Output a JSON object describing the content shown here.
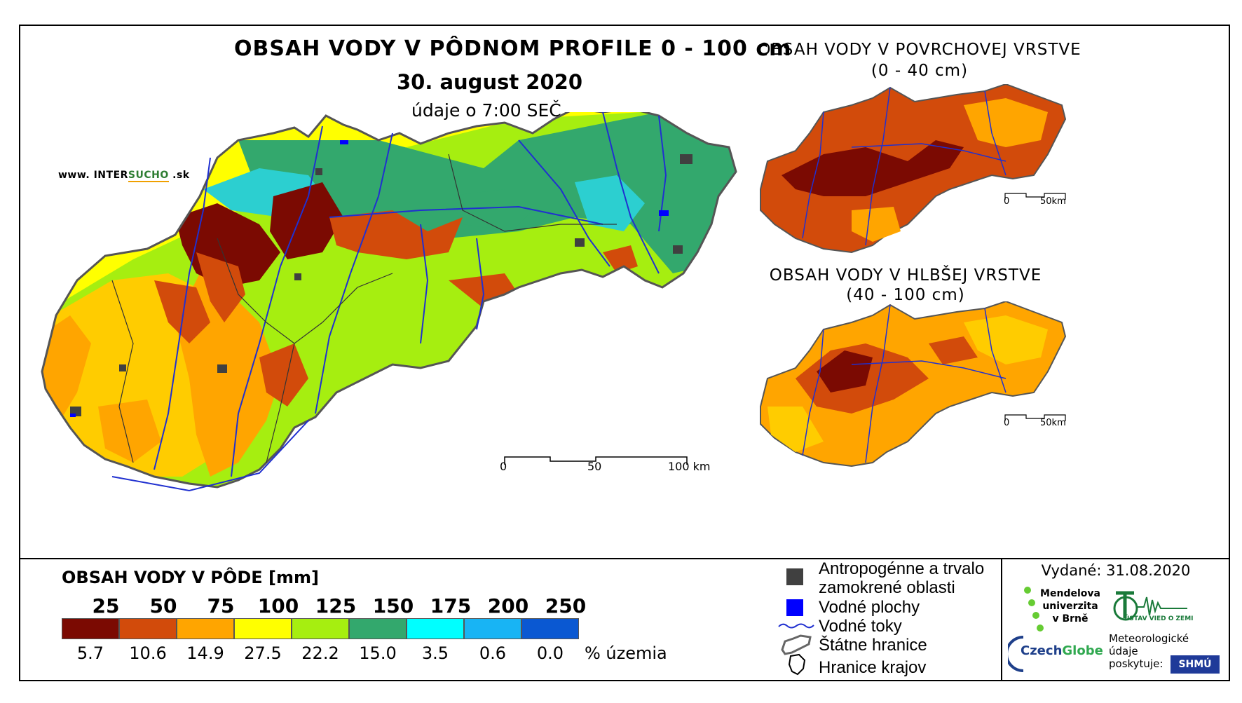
{
  "main": {
    "title": "OBSAH VODY V PÔDNOM PROFILE 0 - 100 cm",
    "date": "30. august 2020",
    "data_time": "údaje o 7:00 SEČ",
    "website_prefix": "www. INTER",
    "website_highlight": "SUCHO",
    "website_suffix": " .sk",
    "scale": {
      "zero": "0",
      "mid": "50",
      "max": "100 km"
    }
  },
  "surface_map": {
    "title": "OBSAH VODY V POVRCHOVEJ VRSTVE",
    "subtitle": "(0 - 40 cm)",
    "scale": {
      "zero": "0",
      "max": "50km"
    }
  },
  "deep_map": {
    "title": "OBSAH VODY V HLBŠEJ VRSTVE",
    "subtitle": "(40 - 100 cm)",
    "scale": {
      "zero": "0",
      "max": "50km"
    }
  },
  "legend": {
    "title": "OBSAH VODY V PÔDE [mm]",
    "thresholds": [
      "25",
      "50",
      "75",
      "100",
      "125",
      "150",
      "175",
      "200",
      "250"
    ],
    "colors": [
      "#7b0a02",
      "#d24b0b",
      "#ffa500",
      "#ffff00",
      "#a6ee10",
      "#33a86d",
      "#00ffff",
      "#18b4f4",
      "#0a58d2"
    ],
    "percentages": [
      "5.7",
      "10.6",
      "14.9",
      "27.5",
      "22.2",
      "15.0",
      "3.5",
      "0.6",
      "0.0"
    ],
    "percent_unit": "% územia"
  },
  "key": {
    "anthropogenic_line1": "Antropogénne a trvalo",
    "anthropogenic_line2": "zamokrené oblasti",
    "water_bodies": "Vodné plochy",
    "rivers": "Vodné toky",
    "state_border": "Štátne hranice",
    "region_border": "Hranice krajov",
    "colors": {
      "anthropogenic": "#404040",
      "water": "#0000ff",
      "river": "#2030d0"
    }
  },
  "issued": "Vydané: 31.08.2020",
  "logos": {
    "mendel": [
      "Mendelova",
      "univerzita",
      "v Brně"
    ],
    "czechglobe_a": "Czech",
    "czechglobe_b": "Globe",
    "ustav": "ÚSTAV VIED O ZEMI",
    "meteo": [
      "Meteorologické",
      "údaje",
      "poskytuje:"
    ],
    "shmu": "SHMÚ"
  }
}
